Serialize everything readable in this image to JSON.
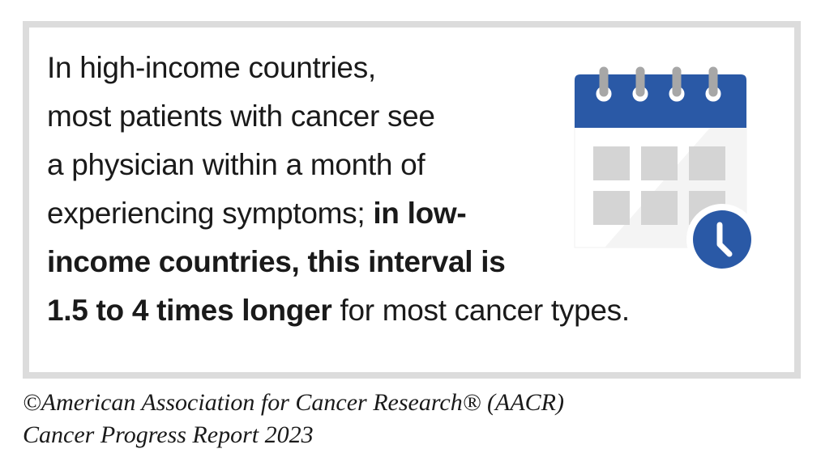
{
  "message": {
    "line1": "In high-income countries,",
    "line2": "most patients with cancer see",
    "line3": "a physician within a month of",
    "line4_regular": "experiencing symptoms; ",
    "line4_bold": "in low-",
    "line5_bold": "income countries, this interval is",
    "line6_bold": "1.5 to 4 times longer",
    "line6_regular": " for most cancer types."
  },
  "credit": {
    "line1": "©American Association for Cancer Research® (AACR)",
    "line2": "Cancer Progress Report 2023"
  },
  "icon": {
    "name": "calendar-clock-icon",
    "header_color": "#2a59a6",
    "clock_color": "#2a59a6",
    "grid_color": "#d4d4d4",
    "ring_color": "#a7a7a7"
  }
}
